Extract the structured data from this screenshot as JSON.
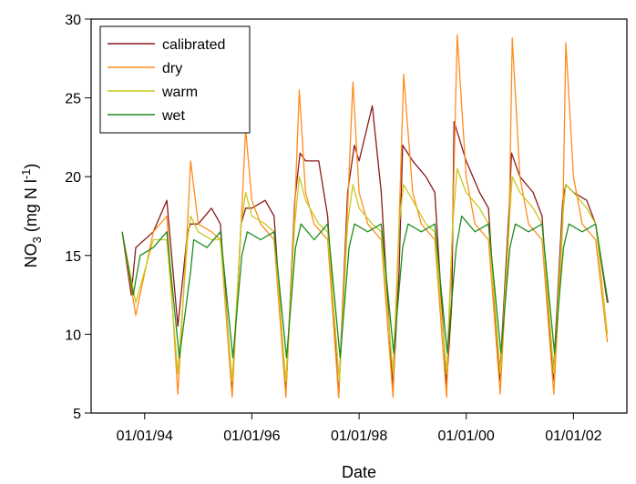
{
  "chart_data": {
    "type": "line",
    "xlabel": "Date",
    "ylabel": {
      "base": "NO",
      "sub": "3",
      "unit_start": " (mg N l",
      "sup": "-1",
      "unit_end": ")"
    },
    "ylim": [
      5,
      30
    ],
    "xlim": [
      "1993-01-01",
      "2002-12-31"
    ],
    "yticks": [
      5,
      10,
      15,
      20,
      25,
      30
    ],
    "xticks": [
      {
        "date": "1994-01-01",
        "label": "01/01/94"
      },
      {
        "date": "1996-01-01",
        "label": "01/01/96"
      },
      {
        "date": "1998-01-01",
        "label": "01/01/98"
      },
      {
        "date": "2000-01-01",
        "label": "01/01/00"
      },
      {
        "date": "2002-01-01",
        "label": "01/01/02"
      }
    ],
    "grid": false,
    "legend": "top-left",
    "series": [
      {
        "name": "calibrated",
        "color": "#8b1a1a",
        "x": [
          "1993-08-01",
          "1993-10-01",
          "1993-11-01",
          "1994-03-01",
          "1994-06-01",
          "1994-08-15",
          "1994-10-20",
          "1994-11-10",
          "1995-01-01",
          "1995-04-01",
          "1995-06-01",
          "1995-08-20",
          "1995-10-20",
          "1995-11-20",
          "1996-01-01",
          "1996-04-01",
          "1996-06-01",
          "1996-08-20",
          "1996-10-20",
          "1996-11-25",
          "1997-01-01",
          "1997-04-01",
          "1997-06-01",
          "1997-08-15",
          "1997-10-15",
          "1997-11-30",
          "1998-01-01",
          "1998-04-01",
          "1998-06-01",
          "1998-08-20",
          "1998-10-01",
          "1998-10-25",
          "1999-01-01",
          "1999-04-01",
          "1999-06-01",
          "1999-08-20",
          "1999-09-25",
          "1999-10-10",
          "2000-01-01",
          "2000-04-01",
          "2000-06-01",
          "2000-08-15",
          "2000-10-20",
          "2000-11-05",
          "2001-01-01",
          "2001-04-01",
          "2001-06-01",
          "2001-08-15",
          "2001-10-20",
          "2001-11-10",
          "2002-01-01",
          "2002-04-01",
          "2002-06-01",
          "2002-08-20"
        ],
        "y": [
          16.5,
          12.5,
          15.5,
          16.5,
          18.5,
          10.5,
          16.5,
          17.0,
          17.0,
          18.0,
          17.0,
          6.5,
          17.0,
          18.0,
          18.0,
          18.5,
          17.5,
          6.2,
          18.5,
          21.5,
          21.0,
          21.0,
          17.5,
          6.0,
          19.0,
          22.0,
          21.0,
          24.5,
          19.0,
          6.5,
          14.0,
          22.0,
          21.0,
          20.0,
          19.0,
          6.8,
          12.0,
          23.5,
          21.0,
          19.0,
          18.0,
          7.0,
          18.0,
          21.5,
          20.0,
          19.0,
          17.5,
          7.0,
          18.5,
          19.5,
          19.0,
          18.5,
          17.0,
          12.0
        ]
      },
      {
        "name": "dry",
        "color": "#ff8c1a",
        "x": [
          "1993-08-01",
          "1993-11-01",
          "1994-03-01",
          "1994-06-01",
          "1994-08-15",
          "1994-10-20",
          "1994-11-10",
          "1995-01-01",
          "1995-04-01",
          "1995-06-01",
          "1995-08-20",
          "1995-10-20",
          "1995-11-20",
          "1996-01-01",
          "1996-03-01",
          "1996-06-01",
          "1996-08-20",
          "1996-10-20",
          "1996-11-20",
          "1997-01-01",
          "1997-03-01",
          "1997-06-01",
          "1997-08-15",
          "1997-10-15",
          "1997-11-20",
          "1998-01-01",
          "1998-03-01",
          "1998-06-01",
          "1998-08-20",
          "1998-10-01",
          "1998-11-01",
          "1999-01-01",
          "1999-03-01",
          "1999-06-01",
          "1999-08-20",
          "1999-10-01",
          "1999-11-01",
          "2000-01-01",
          "2000-03-01",
          "2000-06-01",
          "2000-08-20",
          "2000-10-20",
          "2000-11-10",
          "2001-01-01",
          "2001-03-01",
          "2001-06-01",
          "2001-08-20",
          "2001-10-20",
          "2001-11-10",
          "2002-01-01",
          "2002-03-01",
          "2002-06-01",
          "2002-08-20"
        ],
        "y": [
          16.5,
          11.2,
          16.5,
          17.5,
          6.2,
          17.0,
          21.0,
          17.0,
          16.5,
          16.0,
          6.0,
          17.0,
          23.0,
          18.5,
          17.0,
          16.0,
          6.0,
          18.0,
          25.5,
          19.0,
          17.0,
          16.0,
          6.0,
          18.0,
          26.0,
          19.0,
          17.0,
          16.0,
          6.0,
          17.0,
          26.5,
          19.0,
          17.0,
          16.0,
          6.0,
          17.0,
          29.0,
          20.0,
          17.0,
          16.0,
          6.2,
          17.0,
          28.8,
          20.0,
          17.0,
          16.0,
          6.2,
          17.0,
          28.5,
          20.0,
          17.0,
          16.0,
          9.5
        ]
      },
      {
        "name": "warm",
        "color": "#c8c81e",
        "x": [
          "1993-08-01",
          "1993-11-01",
          "1994-03-01",
          "1994-06-01",
          "1994-08-15",
          "1994-10-20",
          "1994-11-10",
          "1995-01-01",
          "1995-04-01",
          "1995-06-01",
          "1995-08-20",
          "1995-10-20",
          "1995-11-20",
          "1996-01-01",
          "1996-04-01",
          "1996-06-01",
          "1996-08-20",
          "1996-10-20",
          "1996-11-20",
          "1997-01-01",
          "1997-04-01",
          "1997-06-01",
          "1997-08-20",
          "1997-10-15",
          "1997-11-20",
          "1998-01-01",
          "1998-04-01",
          "1998-06-01",
          "1998-08-20",
          "1998-10-01",
          "1998-11-01",
          "1999-01-01",
          "1999-04-01",
          "1999-06-01",
          "1999-08-20",
          "1999-10-01",
          "1999-11-01",
          "2000-01-01",
          "2000-04-01",
          "2000-06-01",
          "2000-08-20",
          "2000-10-20",
          "2000-11-10",
          "2001-01-01",
          "2001-04-01",
          "2001-06-01",
          "2001-08-20",
          "2001-10-20",
          "2001-11-10",
          "2002-01-01",
          "2002-04-01",
          "2002-06-01",
          "2002-08-20"
        ],
        "y": [
          16.5,
          12.0,
          16.0,
          16.0,
          7.5,
          16.0,
          17.5,
          16.5,
          16.0,
          16.0,
          7.0,
          17.0,
          19.0,
          17.5,
          17.0,
          16.5,
          7.0,
          17.0,
          20.0,
          18.5,
          17.0,
          16.5,
          7.0,
          17.0,
          19.5,
          18.0,
          17.0,
          16.5,
          7.5,
          17.0,
          19.5,
          18.5,
          17.0,
          16.5,
          7.5,
          17.0,
          20.5,
          19.0,
          18.0,
          17.0,
          7.5,
          17.0,
          20.0,
          19.0,
          18.0,
          17.0,
          7.5,
          17.5,
          19.5,
          19.0,
          18.0,
          17.0,
          10.0
        ]
      },
      {
        "name": "wet",
        "color": "#1e8c1e",
        "x": [
          "1993-08-01",
          "1993-10-15",
          "1993-12-01",
          "1994-03-01",
          "1994-06-01",
          "1994-08-25",
          "1994-11-10",
          "1994-12-01",
          "1995-03-01",
          "1995-06-01",
          "1995-08-25",
          "1995-10-25",
          "1995-12-01",
          "1996-03-01",
          "1996-06-01",
          "1996-08-25",
          "1996-10-25",
          "1996-12-01",
          "1997-03-01",
          "1997-06-01",
          "1997-08-25",
          "1997-10-25",
          "1997-12-01",
          "1998-03-01",
          "1998-06-01",
          "1998-08-25",
          "1998-10-25",
          "1998-12-01",
          "1999-03-01",
          "1999-06-01",
          "1999-08-25",
          "1999-10-25",
          "1999-12-01",
          "2000-03-01",
          "2000-06-01",
          "2000-08-25",
          "2000-10-25",
          "2000-12-01",
          "2001-03-01",
          "2001-06-01",
          "2001-08-25",
          "2001-10-25",
          "2001-12-01",
          "2002-03-01",
          "2002-06-01",
          "2002-08-25"
        ],
        "y": [
          16.5,
          12.5,
          15.0,
          15.5,
          16.5,
          8.5,
          14.0,
          16.0,
          15.5,
          16.5,
          8.5,
          15.0,
          16.5,
          16.0,
          16.5,
          8.5,
          15.5,
          17.0,
          16.0,
          17.0,
          8.5,
          15.5,
          17.0,
          16.5,
          17.0,
          8.8,
          15.5,
          17.0,
          16.5,
          17.0,
          8.8,
          15.5,
          17.5,
          16.5,
          17.0,
          8.8,
          15.5,
          17.0,
          16.5,
          17.0,
          8.8,
          15.5,
          17.0,
          16.5,
          17.0,
          12.0
        ]
      }
    ]
  }
}
